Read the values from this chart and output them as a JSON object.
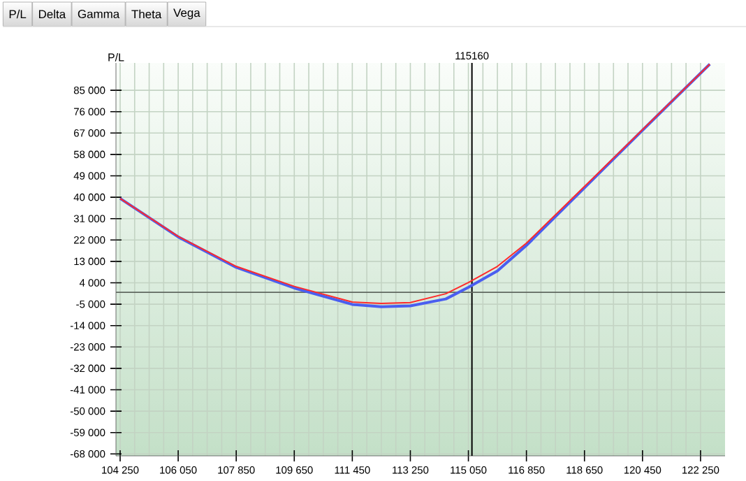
{
  "chart_data": {
    "type": "line",
    "annotations": [
      "P/L",
      "Delta",
      "Gamma",
      "Theta",
      "Vega"
    ],
    "ylabel": "P/L",
    "x": [
      104250,
      106050,
      107850,
      109650,
      111450,
      112350,
      113250,
      114350,
      115050,
      115950,
      116850,
      118650,
      120450,
      122537
    ],
    "series": [
      {
        "color": "#ff2a2a",
        "values": [
          39500,
          23500,
          10900,
          2500,
          -4100,
          -4700,
          -4300,
          -600,
          4100,
          10900,
          20700,
          44500,
          68400,
          96000
        ]
      },
      {
        "color": "#4a5ef0",
        "values": [
          39500,
          23300,
          10500,
          1800,
          -5100,
          -6100,
          -5700,
          -2800,
          2100,
          9000,
          19700,
          44000,
          68200,
          96000
        ]
      }
    ],
    "xlim": [
      104120,
      123010
    ],
    "ylim": [
      -68800,
      96500
    ],
    "xticks": [
      {
        "value": 104250,
        "label": "104 250"
      },
      {
        "value": 106050,
        "label": "106 050"
      },
      {
        "value": 107850,
        "label": "107 850"
      },
      {
        "value": 109650,
        "label": "109 650"
      },
      {
        "value": 111450,
        "label": "111 450"
      },
      {
        "value": 113250,
        "label": "113 250"
      },
      {
        "value": 115050,
        "label": "115 050"
      },
      {
        "value": 116850,
        "label": "116 850"
      },
      {
        "value": 118650,
        "label": "118 650"
      },
      {
        "value": 120450,
        "label": "120 450"
      },
      {
        "value": 122250,
        "label": "122 250"
      }
    ],
    "yticks": [
      {
        "value": -68000,
        "label": "-68 000"
      },
      {
        "value": -59000,
        "label": "-59 000"
      },
      {
        "value": -50000,
        "label": "-50 000"
      },
      {
        "value": -41000,
        "label": "-41 000"
      },
      {
        "value": -32000,
        "label": "-32 000"
      },
      {
        "value": -23000,
        "label": "-23 000"
      },
      {
        "value": -14000,
        "label": "-14 000"
      },
      {
        "value": -5000,
        "label": "-5 000"
      },
      {
        "value": 4000,
        "label": "4 000"
      },
      {
        "value": 13000,
        "label": "13 000"
      },
      {
        "value": 22000,
        "label": "22 000"
      },
      {
        "value": 31000,
        "label": "31 000"
      },
      {
        "value": 40000,
        "label": "40 000"
      },
      {
        "value": 49000,
        "label": "49 000"
      },
      {
        "value": 58000,
        "label": "58 000"
      },
      {
        "value": 67000,
        "label": "67 000"
      },
      {
        "value": 76000,
        "label": "76 000"
      },
      {
        "value": 85000,
        "label": "85 000"
      }
    ],
    "ref_lines": [
      {
        "axis": "x",
        "value": 115160,
        "label": "115160",
        "color": "#000000"
      },
      {
        "axis": "y",
        "value": 0,
        "color": "#606860"
      }
    ],
    "grid": true,
    "marker": "none",
    "line_style": "solid"
  }
}
